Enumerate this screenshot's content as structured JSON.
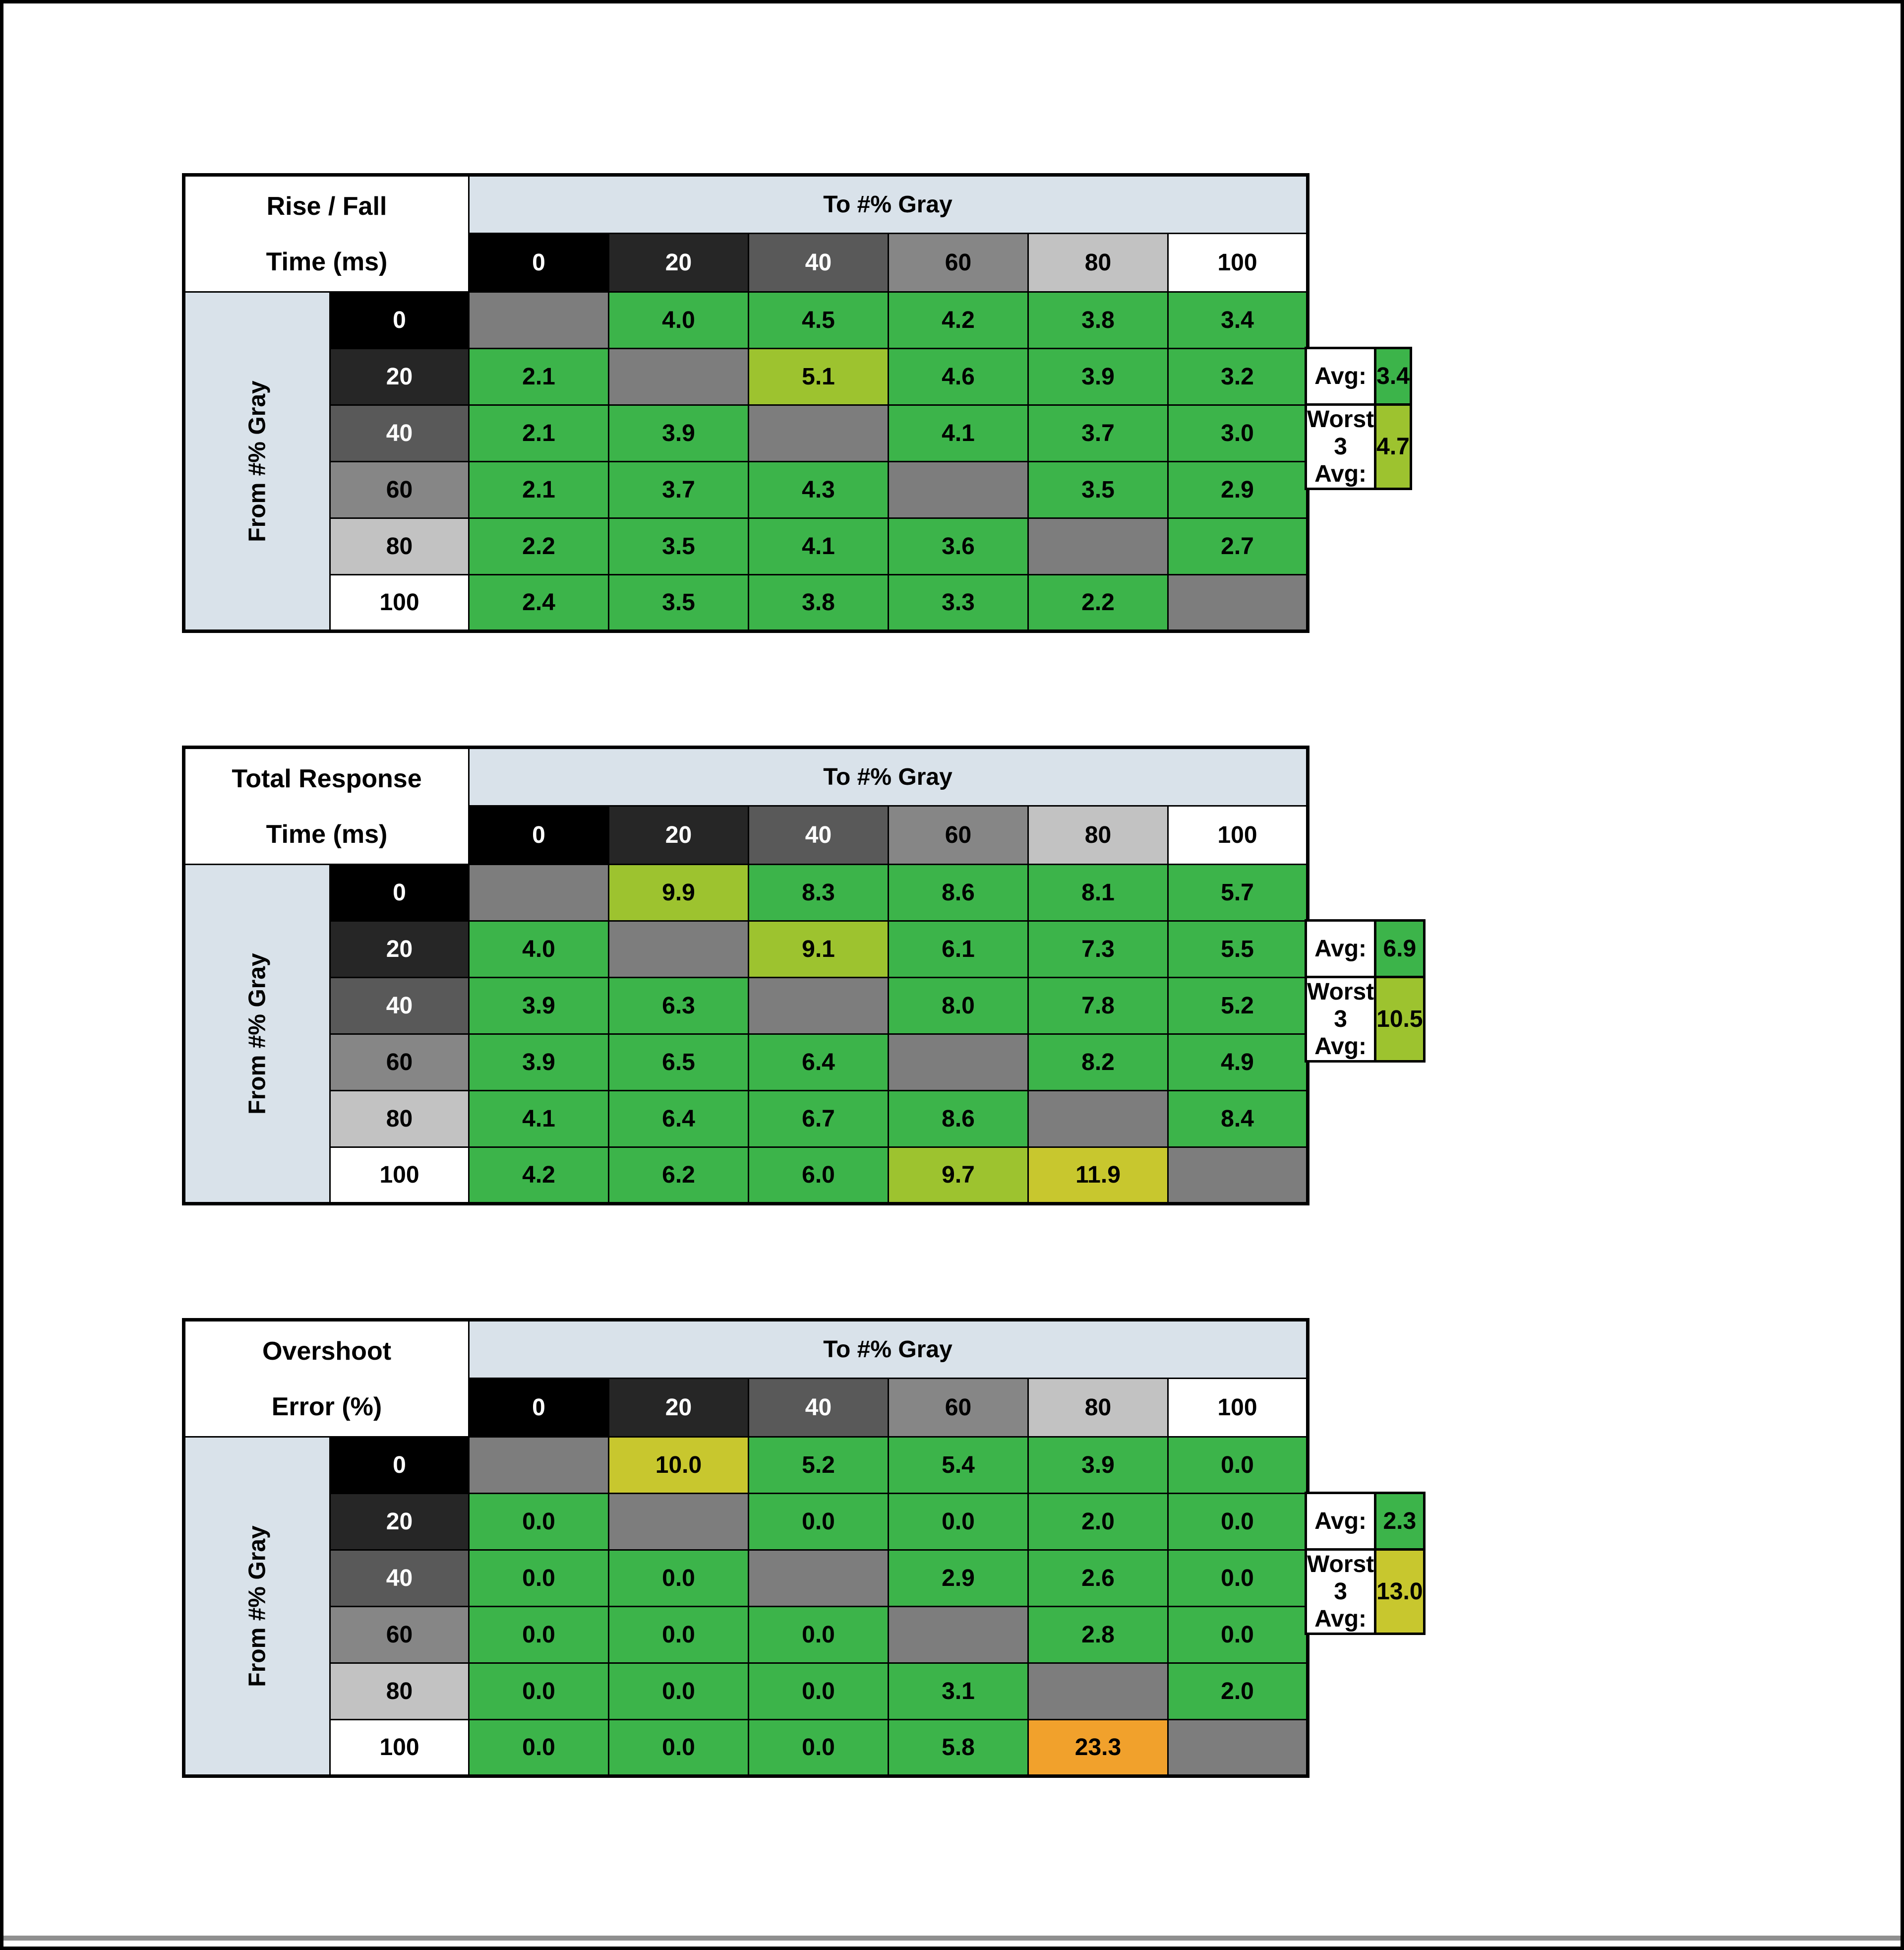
{
  "page": {
    "bg": "#ffffff",
    "border_color": "#000000",
    "bottom_line_color": "#8f8f8f"
  },
  "colors": {
    "g": "#3cb44a",
    "yg": "#9dc32f",
    "y": "#c8c72e",
    "o": "#f1a12c",
    "diag": "#7d7d7d",
    "header_blue": "#d9e2ea"
  },
  "gray_scale": [
    {
      "label": "0",
      "bg": "#000000",
      "fg": "#ffffff"
    },
    {
      "label": "20",
      "bg": "#262626",
      "fg": "#ffffff"
    },
    {
      "label": "40",
      "bg": "#595959",
      "fg": "#ffffff"
    },
    {
      "label": "60",
      "bg": "#868686",
      "fg": "#000000"
    },
    {
      "label": "80",
      "bg": "#c2c2c2",
      "fg": "#000000"
    },
    {
      "label": "100",
      "bg": "#ffffff",
      "fg": "#000000"
    }
  ],
  "tables": [
    {
      "title_line1": "Rise / Fall",
      "title_line2": "Time (ms)",
      "to_label": "To #% Gray",
      "from_label": "From #% Gray",
      "rows": [
        {
          "header": "0",
          "cells": [
            {
              "v": "",
              "c": "diag"
            },
            {
              "v": "4.0",
              "c": "g"
            },
            {
              "v": "4.5",
              "c": "g"
            },
            {
              "v": "4.2",
              "c": "g"
            },
            {
              "v": "3.8",
              "c": "g"
            },
            {
              "v": "3.4",
              "c": "g"
            }
          ]
        },
        {
          "header": "20",
          "cells": [
            {
              "v": "2.1",
              "c": "g"
            },
            {
              "v": "",
              "c": "diag"
            },
            {
              "v": "5.1",
              "c": "yg"
            },
            {
              "v": "4.6",
              "c": "g"
            },
            {
              "v": "3.9",
              "c": "g"
            },
            {
              "v": "3.2",
              "c": "g"
            }
          ]
        },
        {
          "header": "40",
          "cells": [
            {
              "v": "2.1",
              "c": "g"
            },
            {
              "v": "3.9",
              "c": "g"
            },
            {
              "v": "",
              "c": "diag"
            },
            {
              "v": "4.1",
              "c": "g"
            },
            {
              "v": "3.7",
              "c": "g"
            },
            {
              "v": "3.0",
              "c": "g"
            }
          ]
        },
        {
          "header": "60",
          "cells": [
            {
              "v": "2.1",
              "c": "g"
            },
            {
              "v": "3.7",
              "c": "g"
            },
            {
              "v": "4.3",
              "c": "g"
            },
            {
              "v": "",
              "c": "diag"
            },
            {
              "v": "3.5",
              "c": "g"
            },
            {
              "v": "2.9",
              "c": "g"
            }
          ]
        },
        {
          "header": "80",
          "cells": [
            {
              "v": "2.2",
              "c": "g"
            },
            {
              "v": "3.5",
              "c": "g"
            },
            {
              "v": "4.1",
              "c": "g"
            },
            {
              "v": "3.6",
              "c": "g"
            },
            {
              "v": "",
              "c": "diag"
            },
            {
              "v": "2.7",
              "c": "g"
            }
          ]
        },
        {
          "header": "100",
          "cells": [
            {
              "v": "2.4",
              "c": "g"
            },
            {
              "v": "3.5",
              "c": "g"
            },
            {
              "v": "3.8",
              "c": "g"
            },
            {
              "v": "3.3",
              "c": "g"
            },
            {
              "v": "2.2",
              "c": "g"
            },
            {
              "v": "",
              "c": "diag"
            }
          ]
        }
      ],
      "stats": {
        "avg_label": "Avg:",
        "avg_value": "3.4",
        "avg_color": "g",
        "worst_label": "Worst 3 Avg:",
        "worst_value": "4.7",
        "worst_color": "yg"
      }
    },
    {
      "title_line1": "Total Response",
      "title_line2": "Time (ms)",
      "to_label": "To #% Gray",
      "from_label": "From #% Gray",
      "rows": [
        {
          "header": "0",
          "cells": [
            {
              "v": "",
              "c": "diag"
            },
            {
              "v": "9.9",
              "c": "yg"
            },
            {
              "v": "8.3",
              "c": "g"
            },
            {
              "v": "8.6",
              "c": "g"
            },
            {
              "v": "8.1",
              "c": "g"
            },
            {
              "v": "5.7",
              "c": "g"
            }
          ]
        },
        {
          "header": "20",
          "cells": [
            {
              "v": "4.0",
              "c": "g"
            },
            {
              "v": "",
              "c": "diag"
            },
            {
              "v": "9.1",
              "c": "yg"
            },
            {
              "v": "6.1",
              "c": "g"
            },
            {
              "v": "7.3",
              "c": "g"
            },
            {
              "v": "5.5",
              "c": "g"
            }
          ]
        },
        {
          "header": "40",
          "cells": [
            {
              "v": "3.9",
              "c": "g"
            },
            {
              "v": "6.3",
              "c": "g"
            },
            {
              "v": "",
              "c": "diag"
            },
            {
              "v": "8.0",
              "c": "g"
            },
            {
              "v": "7.8",
              "c": "g"
            },
            {
              "v": "5.2",
              "c": "g"
            }
          ]
        },
        {
          "header": "60",
          "cells": [
            {
              "v": "3.9",
              "c": "g"
            },
            {
              "v": "6.5",
              "c": "g"
            },
            {
              "v": "6.4",
              "c": "g"
            },
            {
              "v": "",
              "c": "diag"
            },
            {
              "v": "8.2",
              "c": "g"
            },
            {
              "v": "4.9",
              "c": "g"
            }
          ]
        },
        {
          "header": "80",
          "cells": [
            {
              "v": "4.1",
              "c": "g"
            },
            {
              "v": "6.4",
              "c": "g"
            },
            {
              "v": "6.7",
              "c": "g"
            },
            {
              "v": "8.6",
              "c": "g"
            },
            {
              "v": "",
              "c": "diag"
            },
            {
              "v": "8.4",
              "c": "g"
            }
          ]
        },
        {
          "header": "100",
          "cells": [
            {
              "v": "4.2",
              "c": "g"
            },
            {
              "v": "6.2",
              "c": "g"
            },
            {
              "v": "6.0",
              "c": "g"
            },
            {
              "v": "9.7",
              "c": "yg"
            },
            {
              "v": "11.9",
              "c": "y"
            },
            {
              "v": "",
              "c": "diag"
            }
          ]
        }
      ],
      "stats": {
        "avg_label": "Avg:",
        "avg_value": "6.9",
        "avg_color": "g",
        "worst_label": "Worst 3 Avg:",
        "worst_value": "10.5",
        "worst_color": "yg"
      }
    },
    {
      "title_line1": "Overshoot",
      "title_line2": "Error (%)",
      "to_label": "To #% Gray",
      "from_label": "From #% Gray",
      "rows": [
        {
          "header": "0",
          "cells": [
            {
              "v": "",
              "c": "diag"
            },
            {
              "v": "10.0",
              "c": "y"
            },
            {
              "v": "5.2",
              "c": "g"
            },
            {
              "v": "5.4",
              "c": "g"
            },
            {
              "v": "3.9",
              "c": "g"
            },
            {
              "v": "0.0",
              "c": "g"
            }
          ]
        },
        {
          "header": "20",
          "cells": [
            {
              "v": "0.0",
              "c": "g"
            },
            {
              "v": "",
              "c": "diag"
            },
            {
              "v": "0.0",
              "c": "g"
            },
            {
              "v": "0.0",
              "c": "g"
            },
            {
              "v": "2.0",
              "c": "g"
            },
            {
              "v": "0.0",
              "c": "g"
            }
          ]
        },
        {
          "header": "40",
          "cells": [
            {
              "v": "0.0",
              "c": "g"
            },
            {
              "v": "0.0",
              "c": "g"
            },
            {
              "v": "",
              "c": "diag"
            },
            {
              "v": "2.9",
              "c": "g"
            },
            {
              "v": "2.6",
              "c": "g"
            },
            {
              "v": "0.0",
              "c": "g"
            }
          ]
        },
        {
          "header": "60",
          "cells": [
            {
              "v": "0.0",
              "c": "g"
            },
            {
              "v": "0.0",
              "c": "g"
            },
            {
              "v": "0.0",
              "c": "g"
            },
            {
              "v": "",
              "c": "diag"
            },
            {
              "v": "2.8",
              "c": "g"
            },
            {
              "v": "0.0",
              "c": "g"
            }
          ]
        },
        {
          "header": "80",
          "cells": [
            {
              "v": "0.0",
              "c": "g"
            },
            {
              "v": "0.0",
              "c": "g"
            },
            {
              "v": "0.0",
              "c": "g"
            },
            {
              "v": "3.1",
              "c": "g"
            },
            {
              "v": "",
              "c": "diag"
            },
            {
              "v": "2.0",
              "c": "g"
            }
          ]
        },
        {
          "header": "100",
          "cells": [
            {
              "v": "0.0",
              "c": "g"
            },
            {
              "v": "0.0",
              "c": "g"
            },
            {
              "v": "0.0",
              "c": "g"
            },
            {
              "v": "5.8",
              "c": "g"
            },
            {
              "v": "23.3",
              "c": "o"
            },
            {
              "v": "",
              "c": "diag"
            }
          ]
        }
      ],
      "stats": {
        "avg_label": "Avg:",
        "avg_value": "2.3",
        "avg_color": "g",
        "worst_label": "Worst 3 Avg:",
        "worst_value": "13.0",
        "worst_color": "y"
      }
    }
  ],
  "chart_data": [
    {
      "type": "heatmap",
      "title": "Rise / Fall Time (ms)",
      "xlabel": "To #% Gray",
      "ylabel": "From #% Gray",
      "x": [
        0,
        20,
        40,
        60,
        80,
        100
      ],
      "y": [
        0,
        20,
        40,
        60,
        80,
        100
      ],
      "values": [
        [
          null,
          4.0,
          4.5,
          4.2,
          3.8,
          3.4
        ],
        [
          2.1,
          null,
          5.1,
          4.6,
          3.9,
          3.2
        ],
        [
          2.1,
          3.9,
          null,
          4.1,
          3.7,
          3.0
        ],
        [
          2.1,
          3.7,
          4.3,
          null,
          3.5,
          2.9
        ],
        [
          2.2,
          3.5,
          4.1,
          3.6,
          null,
          2.7
        ],
        [
          2.4,
          3.5,
          3.8,
          3.3,
          2.2,
          null
        ]
      ],
      "avg": 3.4,
      "worst_3_avg": 4.7
    },
    {
      "type": "heatmap",
      "title": "Total Response Time (ms)",
      "xlabel": "To #% Gray",
      "ylabel": "From #% Gray",
      "x": [
        0,
        20,
        40,
        60,
        80,
        100
      ],
      "y": [
        0,
        20,
        40,
        60,
        80,
        100
      ],
      "values": [
        [
          null,
          9.9,
          8.3,
          8.6,
          8.1,
          5.7
        ],
        [
          4.0,
          null,
          9.1,
          6.1,
          7.3,
          5.5
        ],
        [
          3.9,
          6.3,
          null,
          8.0,
          7.8,
          5.2
        ],
        [
          3.9,
          6.5,
          6.4,
          null,
          8.2,
          4.9
        ],
        [
          4.1,
          6.4,
          6.7,
          8.6,
          null,
          8.4
        ],
        [
          4.2,
          6.2,
          6.0,
          9.7,
          11.9,
          null
        ]
      ],
      "avg": 6.9,
      "worst_3_avg": 10.5
    },
    {
      "type": "heatmap",
      "title": "Overshoot Error (%)",
      "xlabel": "To #% Gray",
      "ylabel": "From #% Gray",
      "x": [
        0,
        20,
        40,
        60,
        80,
        100
      ],
      "y": [
        0,
        20,
        40,
        60,
        80,
        100
      ],
      "values": [
        [
          null,
          10.0,
          5.2,
          5.4,
          3.9,
          0.0
        ],
        [
          0.0,
          null,
          0.0,
          0.0,
          2.0,
          0.0
        ],
        [
          0.0,
          0.0,
          null,
          2.9,
          2.6,
          0.0
        ],
        [
          0.0,
          0.0,
          0.0,
          null,
          2.8,
          0.0
        ],
        [
          0.0,
          0.0,
          0.0,
          3.1,
          null,
          2.0
        ],
        [
          0.0,
          0.0,
          0.0,
          5.8,
          23.3,
          null
        ]
      ],
      "avg": 2.3,
      "worst_3_avg": 13.0
    }
  ]
}
